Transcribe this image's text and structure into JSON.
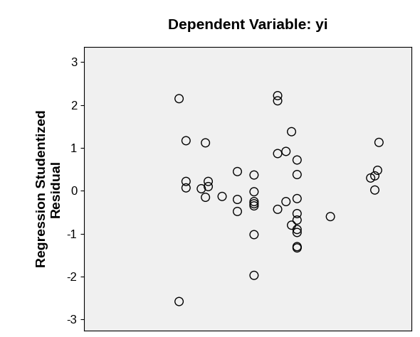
{
  "chart_data": {
    "type": "scatter",
    "title": "Dependent Variable: yi",
    "y_label": "Regression Studentized\nResidual",
    "x": [
      137,
      147,
      175,
      147,
      147,
      169,
      179,
      179,
      175,
      199,
      221,
      221,
      221,
      245,
      245,
      245,
      245,
      245,
      245,
      245,
      137,
      279,
      279,
      279,
      279,
      291,
      291,
      299,
      299,
      307,
      307,
      307,
      307,
      307,
      307,
      307,
      307,
      307,
      355,
      413,
      419,
      423,
      419,
      425
    ],
    "values": [
      2.15,
      1.17,
      1.12,
      0.22,
      0.07,
      0.05,
      0.22,
      0.1,
      -0.15,
      -0.13,
      0.45,
      -0.2,
      -0.48,
      0.37,
      -0.02,
      -0.25,
      -0.3,
      -0.35,
      -1.02,
      -1.97,
      -2.58,
      2.22,
      2.1,
      0.87,
      -0.43,
      0.92,
      -0.25,
      1.38,
      -0.8,
      0.72,
      0.38,
      -0.18,
      -0.53,
      -0.68,
      -0.9,
      -0.97,
      -1.3,
      -1.33,
      -0.6,
      0.3,
      0.35,
      0.48,
      0.02,
      1.13
    ],
    "xlim": [
      0,
      472
    ],
    "ylim": [
      -3.25,
      3.35
    ],
    "yticks": [
      -3,
      -2,
      -1,
      0,
      1,
      2,
      3
    ],
    "marker": "o",
    "color": "#000000",
    "grid": false,
    "tick_labels": "y"
  }
}
